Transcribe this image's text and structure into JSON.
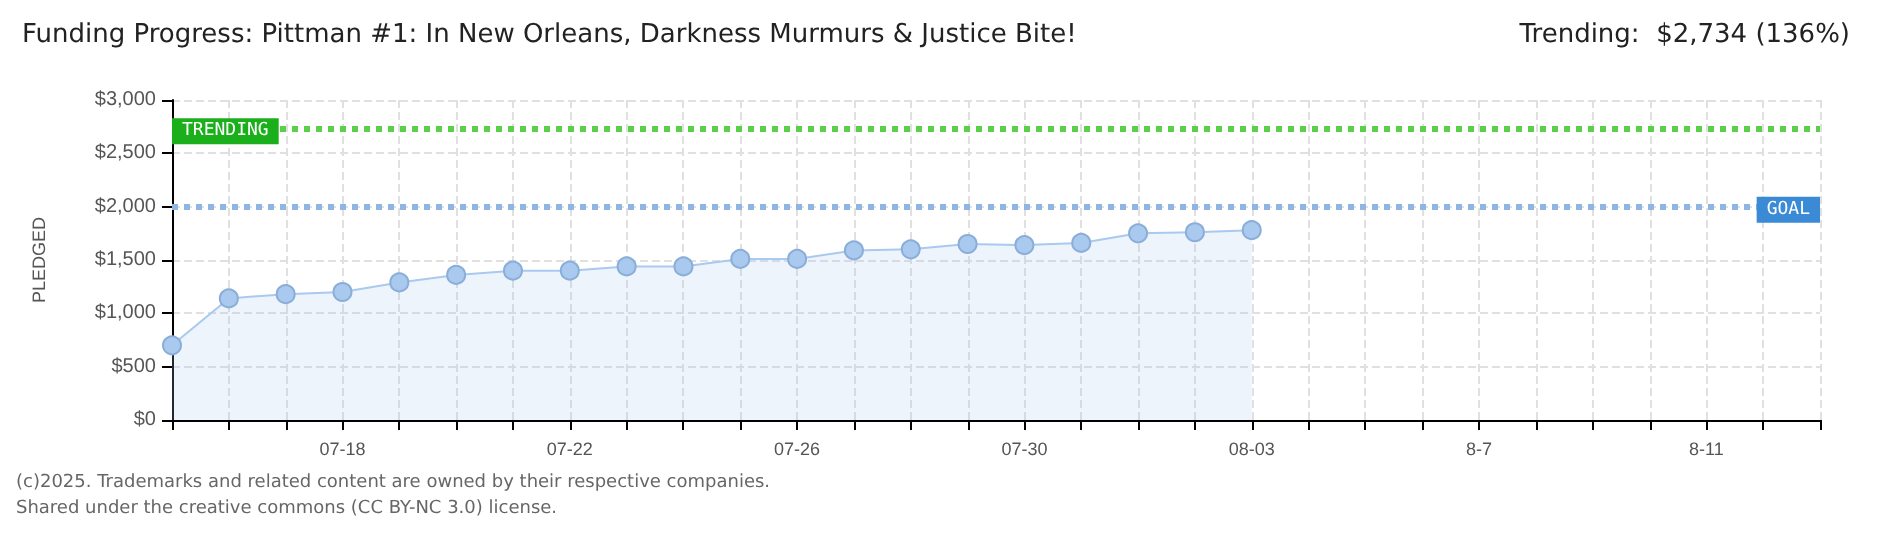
{
  "chart_data": {
    "type": "area",
    "title": "Funding Progress: Pittman #1: In New Orleans, Darkness Murmurs & Justice Bite!",
    "subtitle": "Trending:  $2,734 (136%)",
    "ylabel": "PLEDGED",
    "categories": [
      null,
      null,
      null,
      "07-18",
      null,
      null,
      null,
      "07-22",
      null,
      null,
      null,
      "07-26",
      null,
      null,
      null,
      "07-30",
      null,
      null,
      null,
      "08-03",
      null,
      null,
      null,
      "8-7",
      null,
      null,
      null,
      "8-11",
      null,
      null
    ],
    "series": [
      {
        "color": "#a9c9ef",
        "values": [
          700,
          1140,
          1180,
          1200,
          1290,
          1360,
          1400,
          1400,
          1440,
          1440,
          1510,
          1510,
          1590,
          1600,
          1650,
          1640,
          1660,
          1750,
          1760,
          1780,
          null,
          null,
          null,
          null,
          null,
          null,
          null,
          null,
          null,
          null
        ]
      }
    ],
    "ylim": [
      0,
      3000
    ],
    "yticks": [
      {
        "value": 0,
        "label": "$0"
      },
      {
        "value": 500,
        "label": "$500"
      },
      {
        "value": 1000,
        "label": "$1,000"
      },
      {
        "value": 1500,
        "label": "$1,500"
      },
      {
        "value": 2000,
        "label": "$2,000"
      },
      {
        "value": 2500,
        "label": "$2,500"
      },
      {
        "value": 3000,
        "label": "$3,000"
      }
    ],
    "ref_lines": [
      {
        "axis": "y",
        "value": 2734,
        "label": "TRENDING",
        "color": "#5ccf4a",
        "line_style": "dotted"
      },
      {
        "axis": "y",
        "value": 2000,
        "label": "GOAL",
        "color": "#8fb5e3",
        "line_style": "dotted"
      }
    ],
    "grid": true,
    "marker": "circle",
    "annotations": [
      "(c)2025. Trademarks and related content are owned by their respective companies.",
      "Shared under the creative commons (CC BY-NC 3.0) license."
    ]
  }
}
